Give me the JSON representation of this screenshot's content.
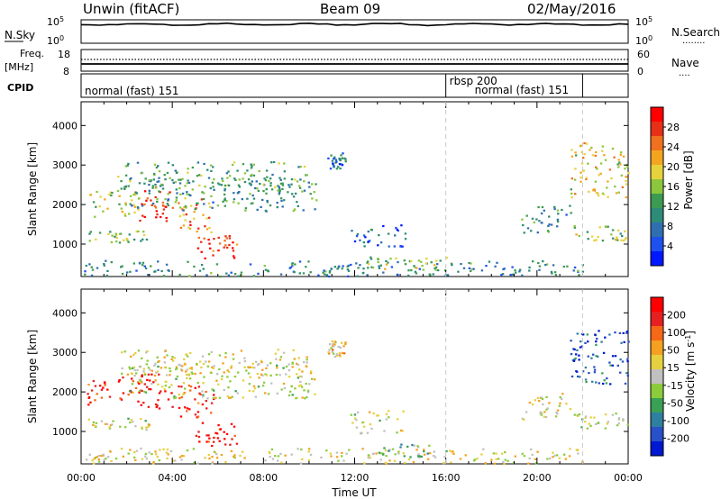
{
  "header": {
    "title": "Unwin (fitACF)",
    "beam": "Beam 09",
    "date": "02/May/2016"
  },
  "status_panels": {
    "nsky_label": "N.Sky",
    "nsearch_label": "N.Search",
    "nsearch_line": "........",
    "freq_label_top": "Freq.",
    "freq_label_unit": "[MHz]",
    "freq_ticks": [
      "18",
      "8"
    ],
    "nave_ticks": [
      "60",
      "0"
    ],
    "nave_label": "Nave",
    "nave_line": "....",
    "noise_ticks": [
      {
        "base": "10",
        "exp": "5"
      },
      {
        "base": "10",
        "exp": "0"
      }
    ],
    "cpid_label": "CPID",
    "cpid_segments": [
      {
        "text": "normal (fast) 151",
        "start_hour": 0.0
      },
      {
        "text": "rbsp 200",
        "start_hour": 16.0
      },
      {
        "text": "normal (fast) 151",
        "start_hour": 16.0
      },
      {
        "text": "",
        "start_hour": 22.0
      }
    ]
  },
  "chart_data": [
    {
      "type": "heatmap",
      "name": "Power",
      "xlabel": "",
      "ylabel": "Slant Range [km]",
      "xlim": [
        0,
        24
      ],
      "ylim": [
        180,
        4600
      ],
      "yticks": [
        1000,
        2000,
        3000,
        4000
      ],
      "colorbar": {
        "label": "Power [dB]",
        "ticks": [
          "28",
          "24",
          "20",
          "16",
          "12",
          "8",
          "4"
        ],
        "colors": [
          "#0018ff",
          "#1e50ee",
          "#2f6fb0",
          "#2e8b78",
          "#3c9a52",
          "#8bc63c",
          "#e6d23c",
          "#f4a520",
          "#f07020",
          "#e63018",
          "#ff0000"
        ]
      },
      "echo_regions": [
        {
          "t0": 0.1,
          "t1": 22.0,
          "r0": 200,
          "r1": 600,
          "level": 0.3
        },
        {
          "t0": 0.2,
          "t1": 2.5,
          "r0": 1700,
          "r1": 2400,
          "level": 0.55
        },
        {
          "t0": 0.3,
          "t1": 3.0,
          "r0": 1050,
          "r1": 1350,
          "level": 0.45
        },
        {
          "t0": 2.5,
          "t1": 4.0,
          "r0": 1600,
          "r1": 2500,
          "level": 0.9
        },
        {
          "t0": 4.2,
          "t1": 5.8,
          "r0": 1300,
          "r1": 2200,
          "level": 0.75
        },
        {
          "t0": 5.0,
          "t1": 6.8,
          "r0": 650,
          "r1": 1250,
          "level": 0.85
        },
        {
          "t0": 2.0,
          "t1": 10.3,
          "r0": 1850,
          "r1": 2700,
          "level": 0.35
        },
        {
          "t0": 1.5,
          "t1": 10.0,
          "r0": 2400,
          "r1": 3100,
          "level": 0.4
        },
        {
          "t0": 10.8,
          "t1": 11.6,
          "r0": 2900,
          "r1": 3350,
          "level": 0.25
        },
        {
          "t0": 11.8,
          "t1": 14.2,
          "r0": 950,
          "r1": 1550,
          "level": 0.2
        },
        {
          "t0": 12.5,
          "t1": 16.0,
          "r0": 350,
          "r1": 700,
          "level": 0.5
        },
        {
          "t0": 19.3,
          "t1": 21.5,
          "r0": 1300,
          "r1": 2000,
          "level": 0.35
        },
        {
          "t0": 21.4,
          "t1": 24.0,
          "r0": 2200,
          "r1": 3600,
          "level": 0.6
        },
        {
          "t0": 21.6,
          "t1": 24.0,
          "r0": 1100,
          "r1": 1500,
          "level": 0.5
        }
      ]
    },
    {
      "type": "heatmap",
      "name": "Velocity",
      "xlabel": "Time UT",
      "ylabel": "Slant Range [km]",
      "xlim": [
        0,
        24
      ],
      "xticks": [
        "00:00",
        "04:00",
        "08:00",
        "12:00",
        "16:00",
        "20:00",
        "00:00"
      ],
      "ylim": [
        180,
        4600
      ],
      "yticks": [
        1000,
        2000,
        3000,
        4000
      ],
      "colorbar": {
        "label": "Velocity [m s",
        "label_exp": "-1",
        "label_end": "]",
        "ticks": [
          "200",
          "100",
          "50",
          "15",
          "-15",
          "-50",
          "-100",
          "-200"
        ],
        "colors": [
          "#0018d0",
          "#2850c8",
          "#2e7fa0",
          "#3aa055",
          "#8ccc3c",
          "#c0c0c0",
          "#e6d040",
          "#f5a020",
          "#f56818",
          "#e62020",
          "#ff0000"
        ]
      },
      "echo_regions": [
        {
          "t0": 0.1,
          "t1": 22.0,
          "r0": 200,
          "r1": 600,
          "level": 0.55
        },
        {
          "t0": 0.2,
          "t1": 2.5,
          "r0": 1700,
          "r1": 2400,
          "level": 0.9
        },
        {
          "t0": 0.3,
          "t1": 3.0,
          "r0": 1050,
          "r1": 1350,
          "level": 0.5
        },
        {
          "t0": 2.5,
          "t1": 4.0,
          "r0": 1600,
          "r1": 2500,
          "level": 0.95
        },
        {
          "t0": 4.2,
          "t1": 5.8,
          "r0": 1300,
          "r1": 2200,
          "level": 0.9
        },
        {
          "t0": 5.0,
          "t1": 6.8,
          "r0": 650,
          "r1": 1250,
          "level": 0.95
        },
        {
          "t0": 2.0,
          "t1": 10.3,
          "r0": 1850,
          "r1": 2700,
          "level": 0.5
        },
        {
          "t0": 1.5,
          "t1": 10.0,
          "r0": 2400,
          "r1": 3100,
          "level": 0.55
        },
        {
          "t0": 10.8,
          "t1": 11.6,
          "r0": 2900,
          "r1": 3350,
          "level": 0.6
        },
        {
          "t0": 11.8,
          "t1": 14.2,
          "r0": 950,
          "r1": 1550,
          "level": 0.5
        },
        {
          "t0": 12.5,
          "t1": 16.0,
          "r0": 350,
          "r1": 700,
          "level": 0.4
        },
        {
          "t0": 19.3,
          "t1": 21.5,
          "r0": 1300,
          "r1": 2000,
          "level": 0.55
        },
        {
          "t0": 21.4,
          "t1": 24.0,
          "r0": 2200,
          "r1": 3600,
          "level": 0.15
        },
        {
          "t0": 21.6,
          "t1": 24.0,
          "r0": 1100,
          "r1": 1500,
          "level": 0.45
        }
      ]
    }
  ]
}
